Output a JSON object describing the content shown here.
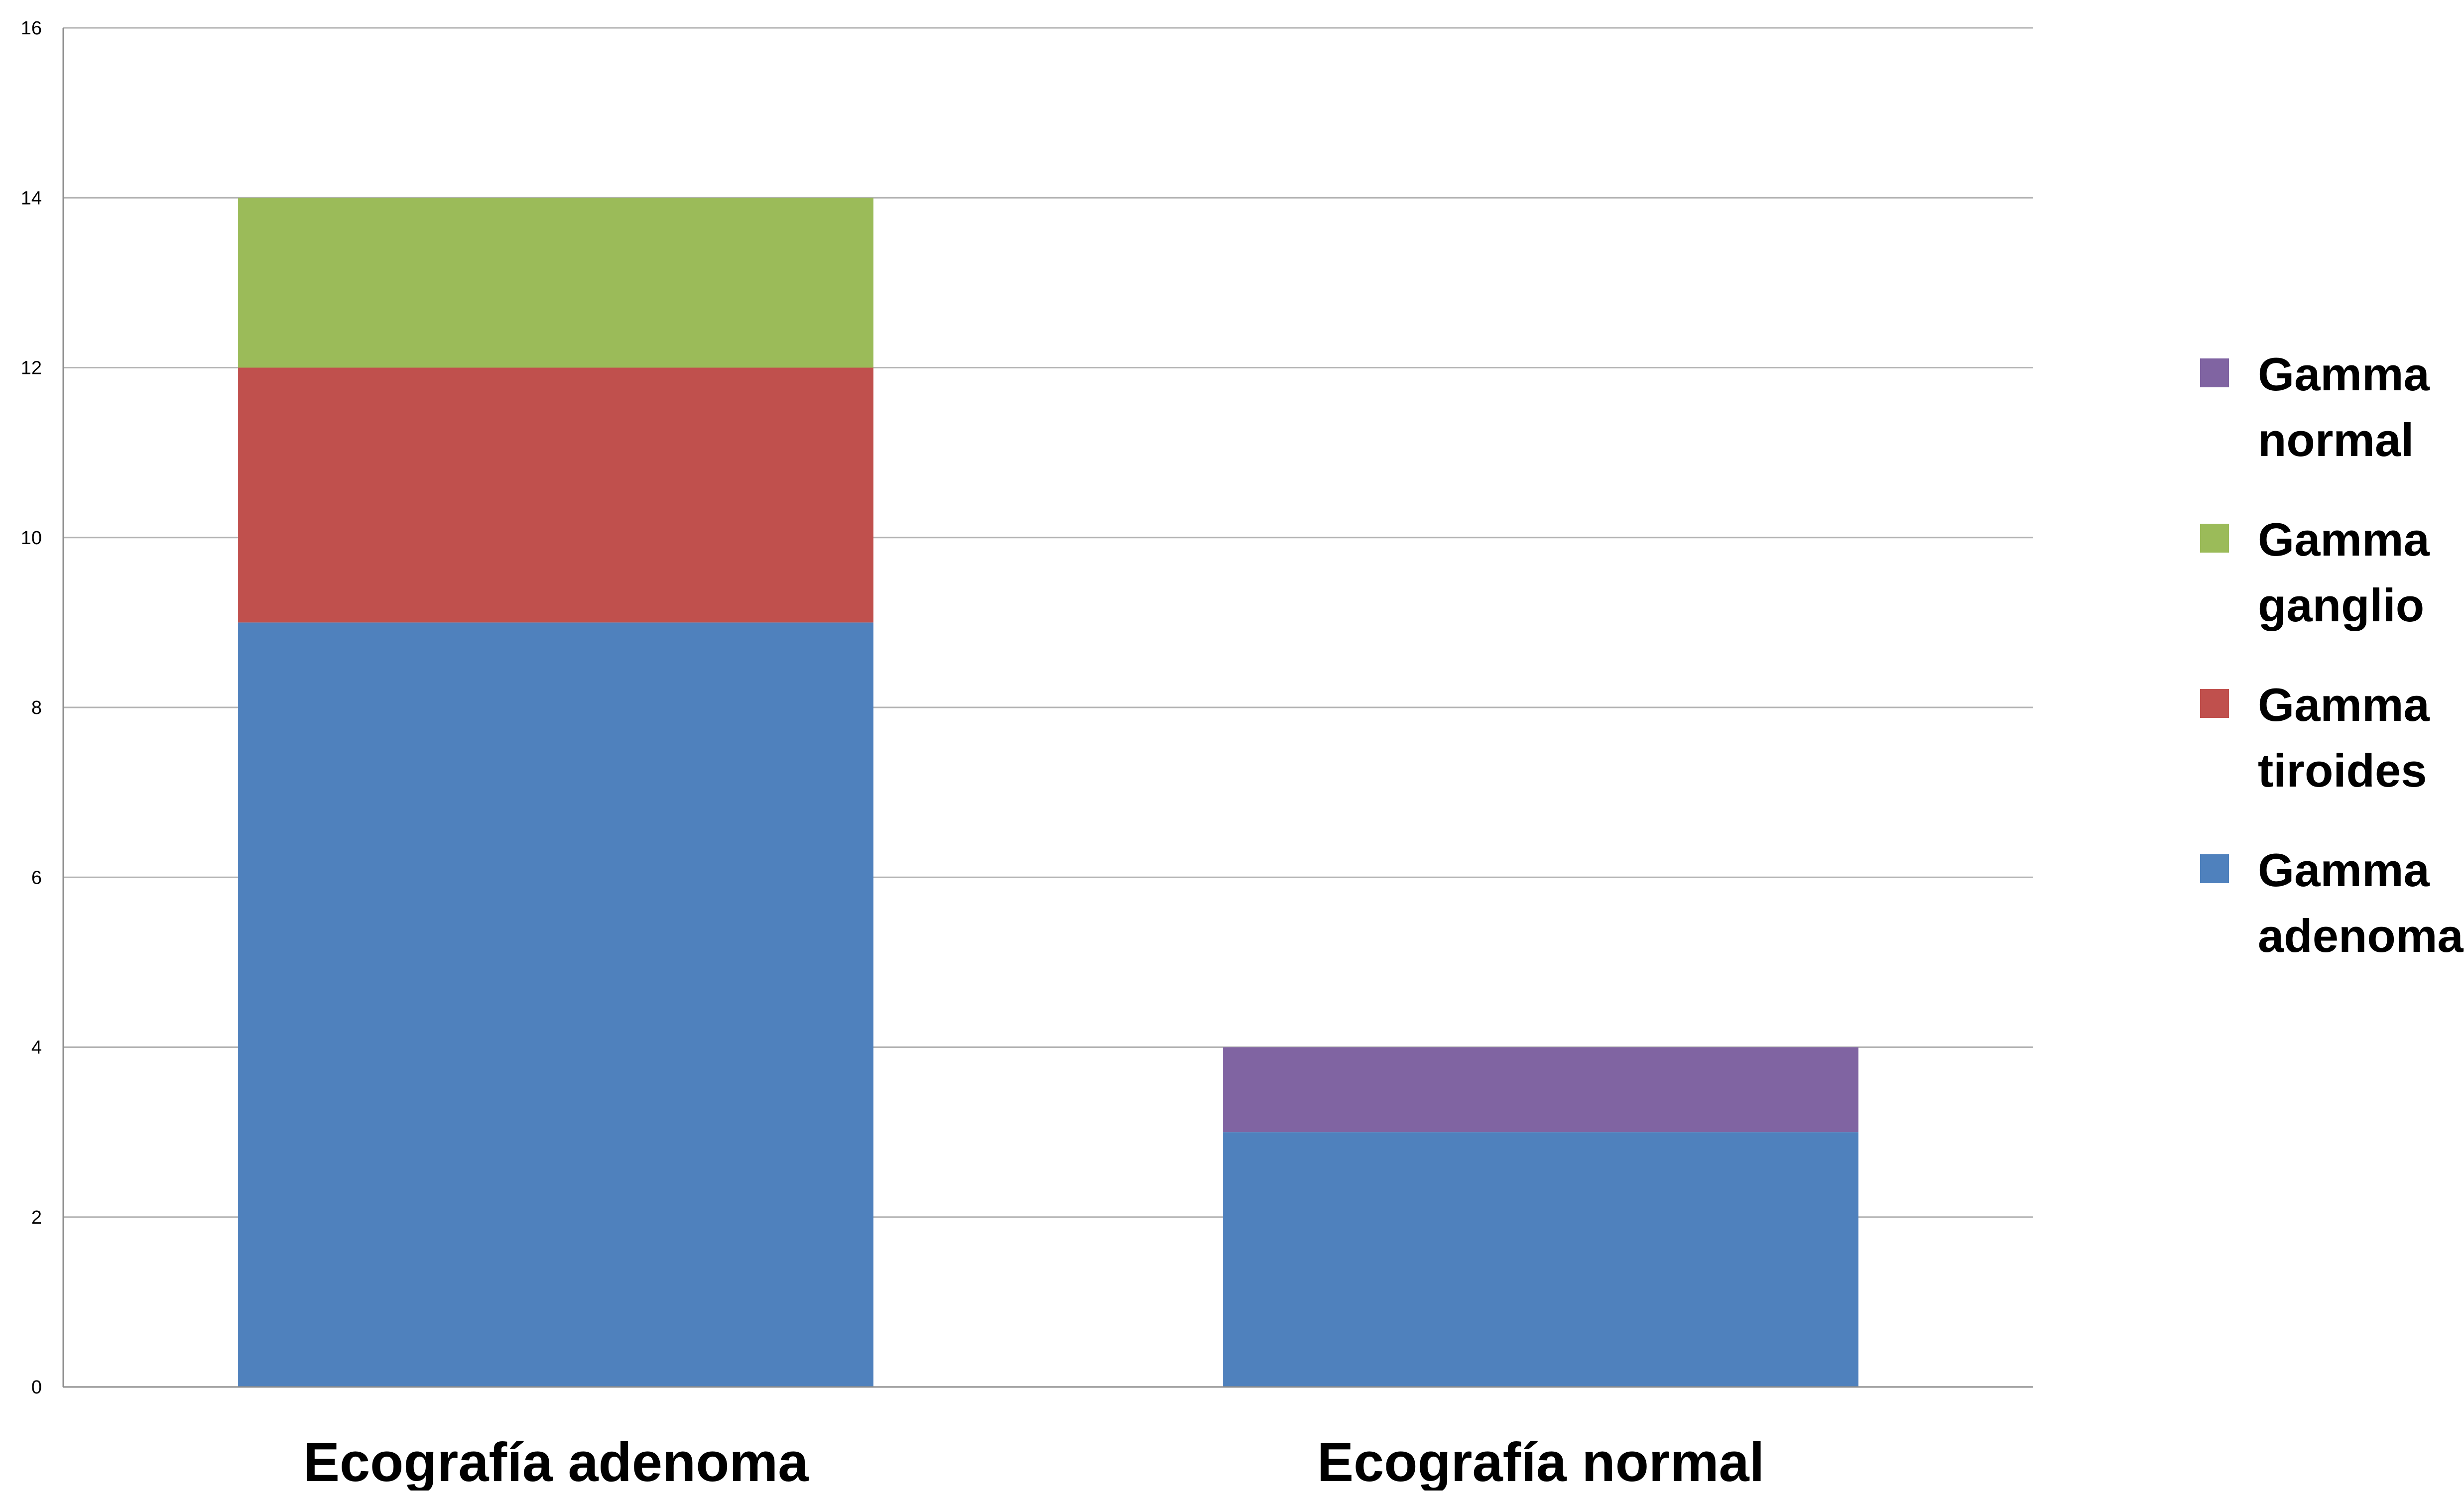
{
  "chart_data": {
    "type": "bar",
    "stacked": true,
    "title": "",
    "xlabel": "",
    "ylabel": "",
    "categories": [
      "Ecografía adenoma",
      "Ecografía normal"
    ],
    "series": [
      {
        "name": "Gamma adenoma",
        "values": [
          9,
          3
        ],
        "color": "#4f81bd"
      },
      {
        "name": "Gamma tiroides",
        "values": [
          3,
          0
        ],
        "color": "#c0504d"
      },
      {
        "name": "Gamma ganglio",
        "values": [
          2,
          0
        ],
        "color": "#9bbb59"
      },
      {
        "name": "Gamma normal",
        "values": [
          0,
          1
        ],
        "color": "#8064a2"
      }
    ],
    "legend_labels": [
      [
        "Gamma",
        "normal"
      ],
      [
        "Gamma",
        "ganglio"
      ],
      [
        "Gamma",
        "tiroides"
      ],
      [
        "Gamma",
        "adenoma"
      ]
    ],
    "ylim": [
      0,
      16
    ],
    "yticks": [
      0,
      2,
      4,
      6,
      8,
      10,
      12,
      14,
      16
    ],
    "grid": true,
    "legend_position": "right"
  }
}
